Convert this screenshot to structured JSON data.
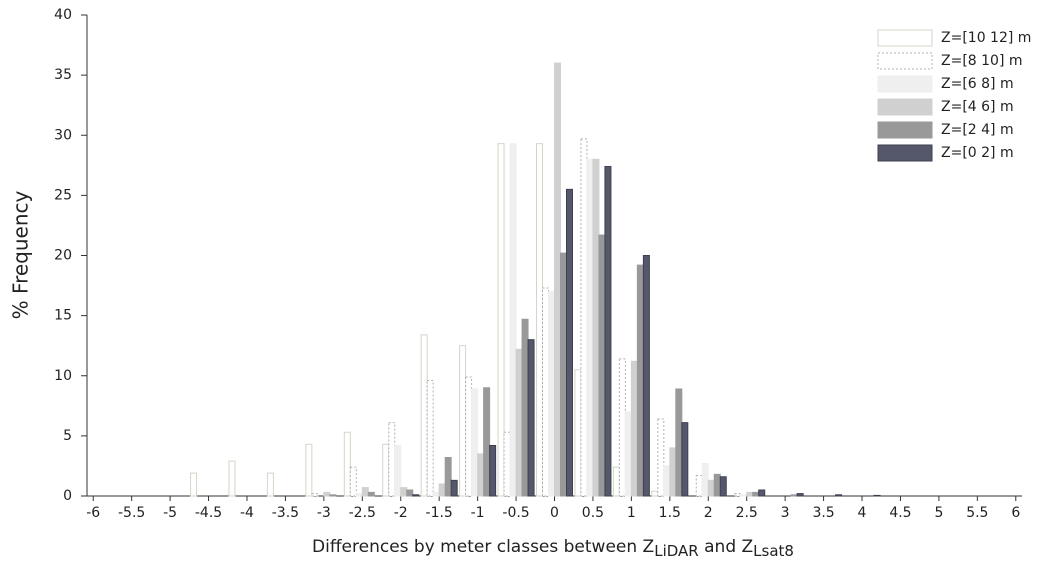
{
  "chart_data": {
    "type": "bar",
    "ylabel": "% Frequency",
    "xlabel": [
      "Differences by meter classes between Z",
      "LiDAR",
      " and Z",
      "Lsat8"
    ],
    "categories": [
      "-6",
      "-5.5",
      "-5",
      "-4.5",
      "-4",
      "-3.5",
      "-3",
      "-2.5",
      "-2",
      "-1.5",
      "-1",
      "-0.5",
      "0",
      "0.5",
      "1",
      "1.5",
      "2",
      "2.5",
      "3",
      "3.5",
      "4",
      "4.5",
      "5",
      "5.5",
      "6"
    ],
    "ylim": [
      0,
      40
    ],
    "yticks": [
      0,
      5,
      10,
      15,
      20,
      25,
      30,
      35,
      40
    ],
    "series": [
      {
        "name": "Z=[10 12] m",
        "color": "#ffffff",
        "edgecolor": "#d2d6c8",
        "linestyle": "solid",
        "values": [
          0,
          0,
          0,
          1.9,
          2.9,
          1.9,
          4.3,
          5.3,
          4.3,
          13.4,
          12.5,
          29.3,
          29.3,
          10.5,
          2.4,
          0.4,
          0,
          0,
          0,
          0,
          0,
          0,
          0,
          0,
          0
        ]
      },
      {
        "name": "Z=[8 10] m",
        "color": "#ffffff",
        "edgecolor": "#b0b0b0",
        "linestyle": "dotted",
        "values": [
          0,
          0,
          0,
          0,
          0,
          0,
          0.2,
          2.4,
          6.1,
          9.6,
          9.9,
          5.3,
          17.3,
          29.7,
          11.4,
          6.4,
          1.7,
          0.2,
          0,
          0,
          0,
          0,
          0,
          0,
          0
        ]
      },
      {
        "name": "Z=[6 8] m",
        "color": "#efefef",
        "edgecolor": "#efefef",
        "linestyle": "solid",
        "values": [
          0,
          0,
          0,
          0,
          0,
          0,
          0,
          0.2,
          4.2,
          0.3,
          8.9,
          29.3,
          17,
          28,
          7,
          2.5,
          2.7,
          0.1,
          0,
          0,
          0,
          0,
          0,
          0,
          0
        ]
      },
      {
        "name": "Z=[4 6] m",
        "color": "#d0d0d0",
        "edgecolor": "#d0d0d0",
        "linestyle": "solid",
        "values": [
          0,
          0,
          0,
          0,
          0,
          0,
          0.3,
          0.7,
          0.7,
          1,
          3.5,
          12.2,
          36,
          28,
          11.2,
          4,
          1.3,
          0.3,
          0,
          0,
          0,
          0,
          0,
          0,
          0
        ]
      },
      {
        "name": "Z=[2 4] m",
        "color": "#999999",
        "edgecolor": "#999999",
        "linestyle": "solid",
        "values": [
          0,
          0,
          0,
          0,
          0,
          0,
          0.1,
          0.3,
          0.5,
          3.2,
          9,
          14.7,
          20.2,
          21.7,
          19.2,
          8.9,
          1.8,
          0.3,
          0.1,
          0,
          0,
          0,
          0,
          0,
          0
        ]
      },
      {
        "name": "Z=[0 2] m",
        "color": "#55586a",
        "edgecolor": "#3e4050",
        "linestyle": "solid",
        "values": [
          0,
          0,
          0,
          0,
          0,
          0,
          0,
          0,
          0.1,
          1.3,
          4.2,
          13,
          25.5,
          27.4,
          20,
          6.1,
          1.6,
          0.5,
          0.2,
          0.1,
          0.05,
          0,
          0,
          0,
          0
        ]
      }
    ]
  }
}
